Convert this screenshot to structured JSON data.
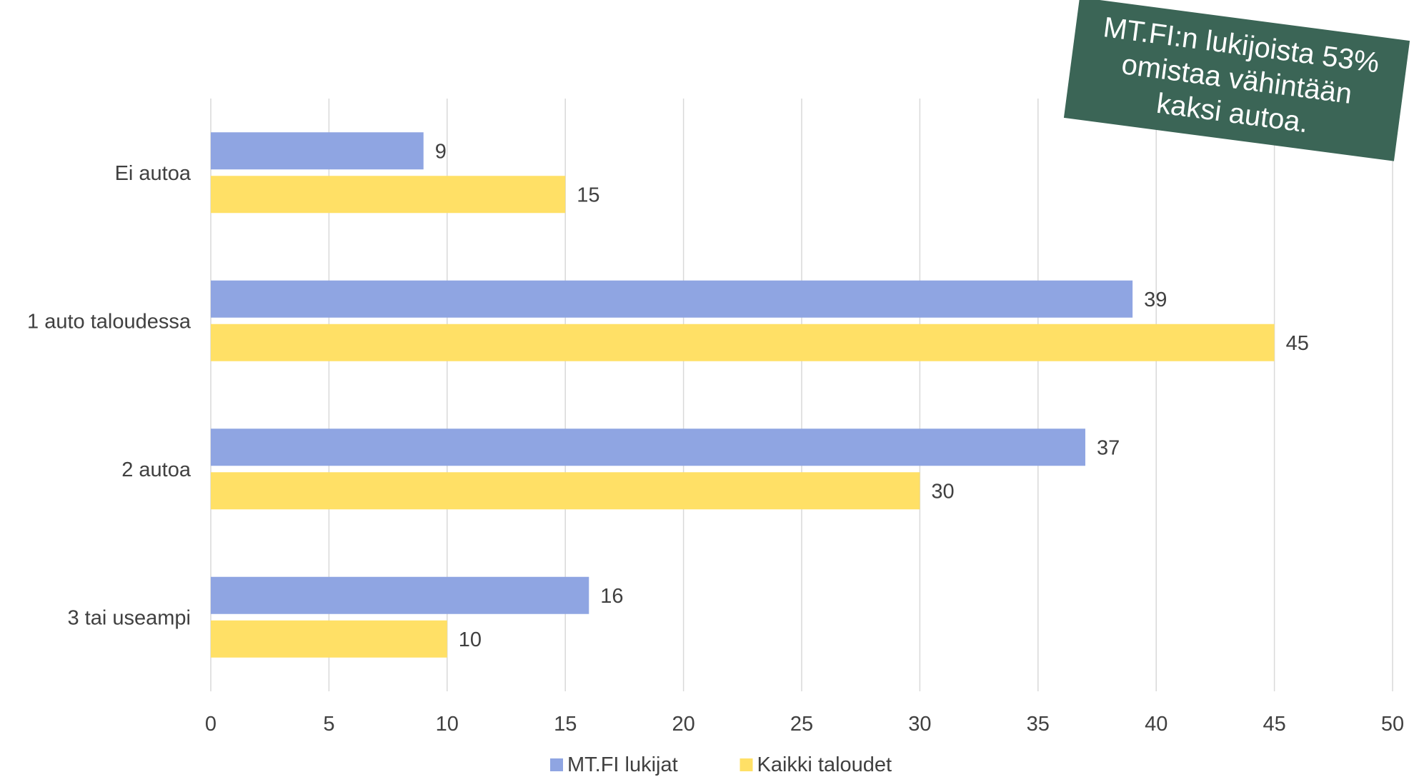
{
  "chart_data": {
    "type": "bar",
    "orientation": "horizontal",
    "categories": [
      "Ei autoa",
      "1 auto taloudessa",
      "2 autoa",
      "3 tai useampi"
    ],
    "series": [
      {
        "name": "MT.FI lukijat",
        "values": [
          9,
          39,
          37,
          16
        ],
        "color": "#8fa5e2"
      },
      {
        "name": "Kaikki taloudet",
        "values": [
          15,
          45,
          30,
          10
        ],
        "color": "#ffe066"
      }
    ],
    "xlim": [
      0,
      50
    ],
    "xticks": [
      0,
      5,
      10,
      15,
      20,
      25,
      30,
      35,
      40,
      45,
      50
    ],
    "grid": true,
    "legend": "bottom",
    "data_labels": true,
    "gridline_color": "#d9d9d9",
    "text_color": "#404040"
  },
  "callout": {
    "lines": [
      "MT.FI:n lukijoista 53%",
      "omistaa vähintään",
      "kaksi autoa."
    ],
    "color": "#3b6556"
  }
}
